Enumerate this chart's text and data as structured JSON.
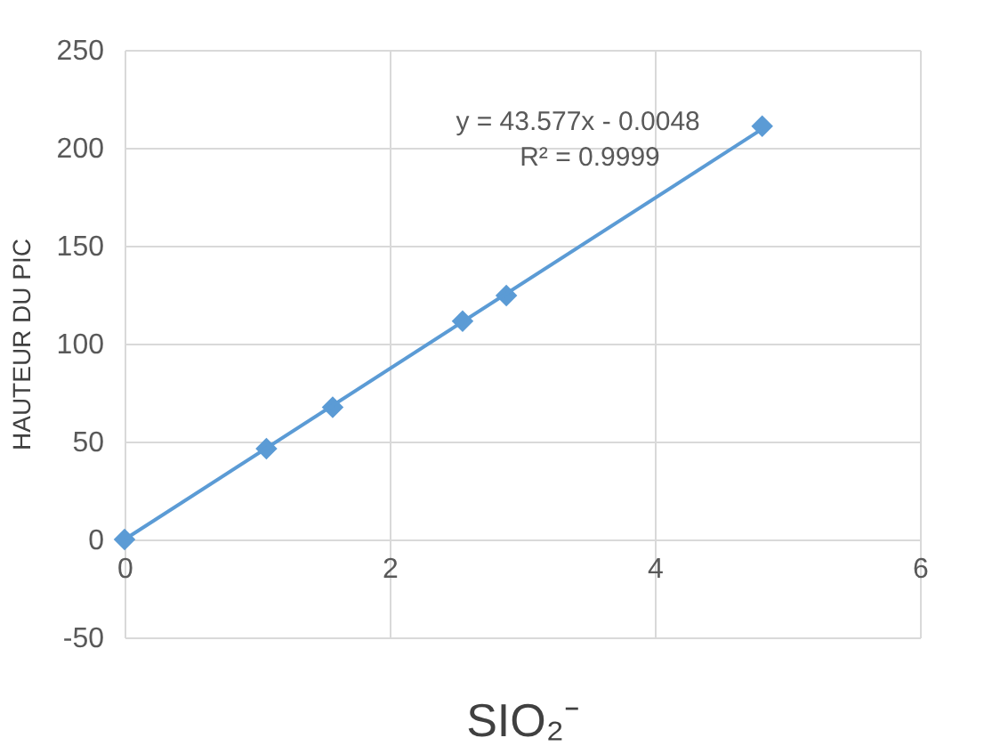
{
  "chart_data": {
    "type": "scatter",
    "xlabel": "SIO₂⁻",
    "ylabel": "HAUTEUR DU  PIC",
    "xlim": [
      0,
      6
    ],
    "xticks": [
      0,
      2,
      4,
      6
    ],
    "ylim": [
      -50,
      250
    ],
    "yticks": [
      -50,
      0,
      50,
      100,
      150,
      200,
      250
    ],
    "grid": true,
    "series": [
      {
        "color": "#5b9bd5",
        "marker": "diamond",
        "x": [
          0,
          1.07,
          1.57,
          2.55,
          2.88,
          4.81
        ],
        "values": [
          0,
          46.4,
          67.5,
          111.5,
          124.5,
          211
        ]
      },
      {
        "type": "line",
        "color": "#5b9bd5",
        "marker": "none",
        "line_style": "solid",
        "x": [
          0,
          4.81
        ],
        "values": [
          -0.0048,
          209.6
        ]
      }
    ],
    "annotations": [
      "y = 43.577x - 0.0048",
      "R² = 0.9999"
    ]
  }
}
